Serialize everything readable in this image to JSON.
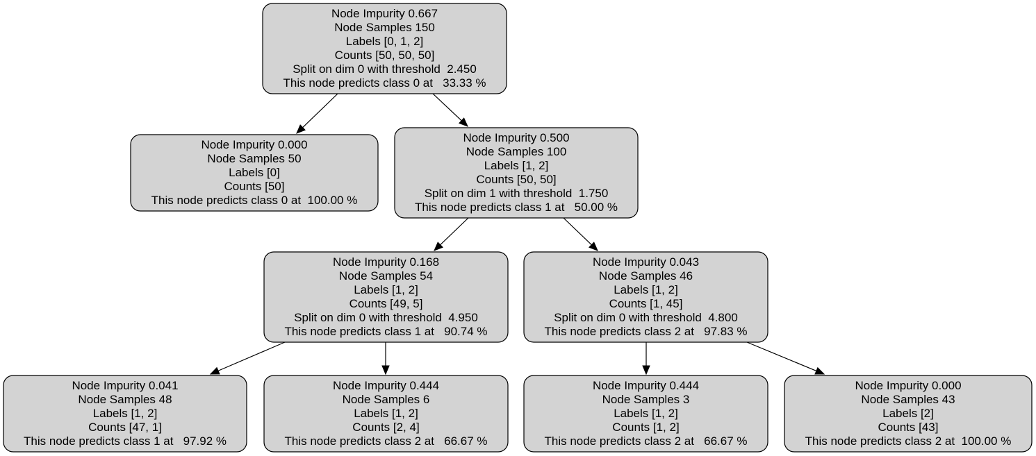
{
  "tree": {
    "nodes": [
      {
        "id": "root",
        "lines": [
          "Node Impurity 0.667",
          "Node Samples 150",
          "Labels [0, 1, 2]",
          "Counts [50, 50, 50]",
          "Split on dim 0 with threshold  2.450",
          "This node predicts class 0 at   33.33 %"
        ]
      },
      {
        "id": "left-leaf",
        "lines": [
          "Node Impurity 0.000",
          "Node Samples 50",
          "Labels [0]",
          "Counts [50]",
          "This node predicts class 0 at  100.00 %"
        ]
      },
      {
        "id": "right-split",
        "lines": [
          "Node Impurity 0.500",
          "Node Samples 100",
          "Labels [1, 2]",
          "Counts [50, 50]",
          "Split on dim 1 with threshold  1.750",
          "This node predicts class 1 at   50.00 %"
        ]
      },
      {
        "id": "mid-left",
        "lines": [
          "Node Impurity 0.168",
          "Node Samples 54",
          "Labels [1, 2]",
          "Counts [49, 5]",
          "Split on dim 0 with threshold  4.950",
          "This node predicts class 1 at   90.74 %"
        ]
      },
      {
        "id": "mid-right",
        "lines": [
          "Node Impurity 0.043",
          "Node Samples 46",
          "Labels [1, 2]",
          "Counts [1, 45]",
          "Split on dim 0 with threshold  4.800",
          "This node predicts class 2 at   97.83 %"
        ]
      },
      {
        "id": "leaf-1",
        "lines": [
          "Node Impurity 0.041",
          "Node Samples 48",
          "Labels [1, 2]",
          "Counts [47, 1]",
          "This node predicts class 1 at   97.92 %"
        ]
      },
      {
        "id": "leaf-2",
        "lines": [
          "Node Impurity 0.444",
          "Node Samples 6",
          "Labels [1, 2]",
          "Counts [2, 4]",
          "This node predicts class 2 at   66.67 %"
        ]
      },
      {
        "id": "leaf-3",
        "lines": [
          "Node Impurity 0.444",
          "Node Samples 3",
          "Labels [1, 2]",
          "Counts [1, 2]",
          "This node predicts class 2 at   66.67 %"
        ]
      },
      {
        "id": "leaf-4",
        "lines": [
          "Node Impurity 0.000",
          "Node Samples 43",
          "Labels [2]",
          "Counts [43]",
          "This node predicts class 2 at  100.00 %"
        ]
      }
    ],
    "edges": [
      {
        "from": "root",
        "to": "left-leaf"
      },
      {
        "from": "root",
        "to": "right-split"
      },
      {
        "from": "right-split",
        "to": "mid-left"
      },
      {
        "from": "right-split",
        "to": "mid-right"
      },
      {
        "from": "mid-left",
        "to": "leaf-1"
      },
      {
        "from": "mid-left",
        "to": "leaf-2"
      },
      {
        "from": "mid-right",
        "to": "leaf-3"
      },
      {
        "from": "mid-right",
        "to": "leaf-4"
      }
    ],
    "colors": {
      "node_fill": "#d3d3d3",
      "stroke": "#000000"
    }
  }
}
